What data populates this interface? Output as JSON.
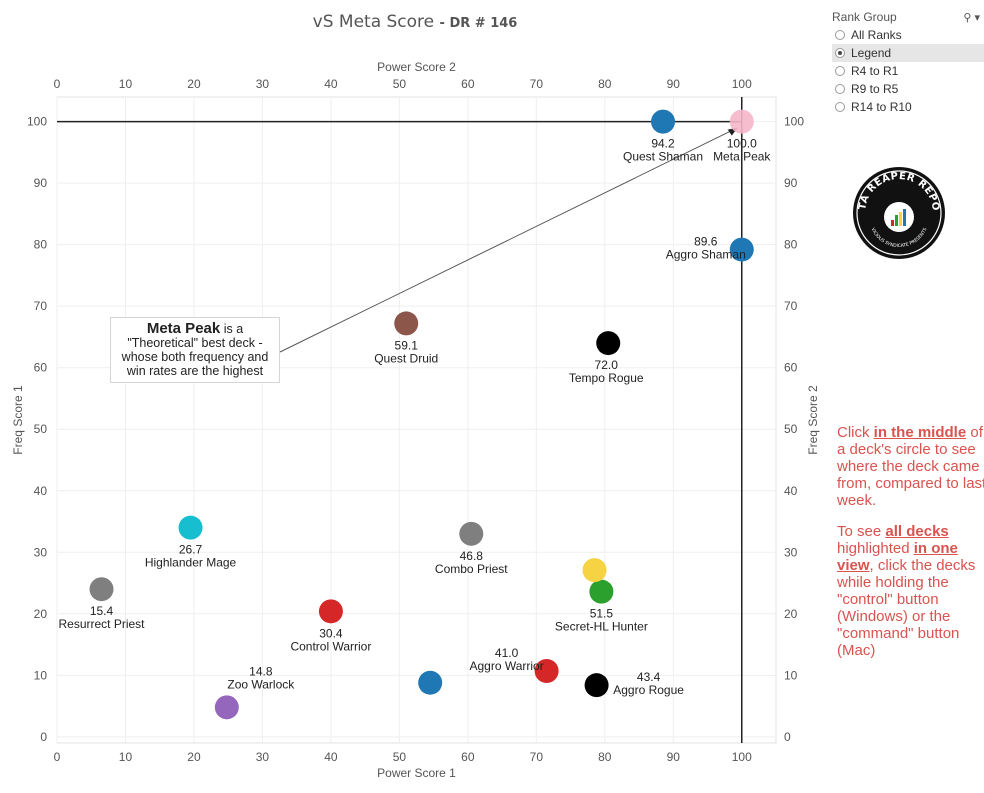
{
  "title": "vS Meta Score",
  "subtitle": "DR # 146",
  "rank_group": {
    "label": "Rank Group",
    "options": [
      "All Ranks",
      "Legend",
      "R4 to R1",
      "R9 to R5",
      "R14 to R10"
    ],
    "selected": "Legend"
  },
  "logo": {
    "text": "DATA REAPER REPORT",
    "subtext": "VICIOUS SYNDICATE PRESENTS"
  },
  "annotation": {
    "bold": "Meta Peak",
    "line1": " is a",
    "line2": "\"Theoretical\" best deck -",
    "line3": "whose both frequency and",
    "line4": "win rates are the highest"
  },
  "help": {
    "p1_pre": "Click ",
    "p1_bold": "in the middle",
    "p1_post": " of a deck's circle to see where the deck came from, compared to last week.",
    "p2_pre": "To see ",
    "p2_bold1": "all decks",
    "p2_mid": " highlighted ",
    "p2_bold2": "in one view",
    "p2_post": ", click the decks while holding the \"control\" button (Windows) or the \"command\" button (Mac)"
  },
  "chart_data": {
    "type": "scatter",
    "xlabel": "Power Score 1",
    "xlabel_top": "Power Score 2",
    "ylabel": "Freq Score 1",
    "ylabel_right": "Freq Score 2",
    "xlim": [
      0,
      105
    ],
    "ylim": [
      -1,
      104
    ],
    "xticks": [
      0,
      10,
      20,
      30,
      40,
      50,
      60,
      70,
      80,
      90,
      100
    ],
    "yticks": [
      0,
      10,
      20,
      30,
      40,
      50,
      60,
      70,
      80,
      90,
      100
    ],
    "reference_lines": {
      "x": 100,
      "y": 100
    },
    "grid": true,
    "points": [
      {
        "name": "Quest Shaman",
        "score": "94.2",
        "x": 88.5,
        "y": 100.0,
        "color": "#1f77b4"
      },
      {
        "name": "Meta Peak",
        "score": "100.0",
        "x": 100.0,
        "y": 100.0,
        "color": "#f4b6c9"
      },
      {
        "name": "Aggro Shaman",
        "score": "89.6",
        "x": 100.0,
        "y": 79.2,
        "color": "#1f77b4"
      },
      {
        "name": "Quest Druid",
        "score": "59.1",
        "x": 51.0,
        "y": 67.2,
        "color": "#8c564b"
      },
      {
        "name": "Tempo Rogue",
        "score": "72.0",
        "x": 80.5,
        "y": 64.0,
        "color": "#000000"
      },
      {
        "name": "Highlander Mage",
        "score": "26.7",
        "x": 19.5,
        "y": 34.0,
        "color": "#17becf"
      },
      {
        "name": "Combo Priest",
        "score": "46.8",
        "x": 60.5,
        "y": 33.0,
        "color": "#7f7f7f"
      },
      {
        "name": "Resurrect Priest",
        "score": "15.4",
        "x": 6.5,
        "y": 24.0,
        "color": "#7f7f7f"
      },
      {
        "name": "Secret-HL Hunter",
        "score": "51.5",
        "x": 79.5,
        "y": 23.6,
        "color": "#2ca02c"
      },
      {
        "name": "",
        "score": "",
        "x": 78.5,
        "y": 27.1,
        "color": "#f5d342"
      },
      {
        "name": "Control Warrior",
        "score": "30.4",
        "x": 40.0,
        "y": 20.4,
        "color": "#d62728"
      },
      {
        "name": "Zoo Warlock",
        "score": "14.8",
        "x": 24.8,
        "y": 4.8,
        "color": "#9467bd"
      },
      {
        "name": "",
        "score": "",
        "x": 54.5,
        "y": 8.8,
        "color": "#1f77b4"
      },
      {
        "name": "Aggro Warrior",
        "score": "41.0",
        "x": 71.5,
        "y": 10.7,
        "color": "#d62728"
      },
      {
        "name": "Aggro Rogue",
        "score": "43.4",
        "x": 78.8,
        "y": 8.4,
        "color": "#000000"
      }
    ]
  }
}
